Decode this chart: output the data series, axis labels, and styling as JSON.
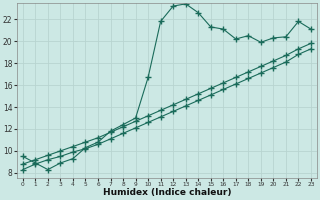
{
  "xlabel": "Humidex (Indice chaleur)",
  "background_color": "#cce8e4",
  "grid_color": "#b8d4d0",
  "line_color": "#1a6b5a",
  "xlim": [
    -0.5,
    23.5
  ],
  "ylim": [
    7.5,
    23.5
  ],
  "yticks": [
    8,
    10,
    12,
    14,
    16,
    18,
    20,
    22
  ],
  "xticks": [
    0,
    1,
    2,
    3,
    4,
    5,
    6,
    7,
    8,
    9,
    10,
    11,
    12,
    13,
    14,
    15,
    16,
    17,
    18,
    19,
    20,
    21,
    22,
    23
  ],
  "xtick_labels": [
    "0",
    "1",
    "2",
    "3",
    "4",
    "5",
    "6",
    "7",
    "8",
    "9",
    "10",
    "11",
    "12",
    "13",
    "14",
    "15",
    "16",
    "17",
    "18",
    "19",
    "20",
    "21",
    "22",
    "23"
  ],
  "line1_x": [
    0,
    1,
    2,
    3,
    4,
    5,
    6,
    7,
    8,
    9,
    10,
    11,
    12,
    13,
    14,
    15,
    16,
    17,
    18,
    19,
    20,
    21,
    22,
    23
  ],
  "line1_y": [
    9.5,
    8.9,
    8.3,
    8.9,
    9.3,
    10.3,
    10.8,
    11.8,
    12.4,
    13.0,
    16.7,
    21.8,
    23.2,
    23.4,
    22.6,
    21.3,
    21.1,
    20.2,
    20.5,
    19.9,
    20.3,
    20.4,
    21.8,
    21.1
  ],
  "line2_x": [
    0,
    1,
    2,
    3,
    4,
    5,
    6,
    7,
    8,
    9,
    10,
    11,
    12,
    13,
    14,
    15,
    16,
    17,
    18,
    19,
    20,
    21,
    22,
    23
  ],
  "line2_y": [
    8.3,
    8.8,
    9.2,
    9.5,
    9.9,
    10.2,
    10.6,
    11.1,
    11.6,
    12.1,
    12.6,
    13.1,
    13.6,
    14.1,
    14.6,
    15.1,
    15.6,
    16.1,
    16.6,
    17.1,
    17.6,
    18.1,
    18.8,
    19.3
  ],
  "line3_x": [
    0,
    1,
    2,
    3,
    4,
    5,
    6,
    7,
    8,
    9,
    10,
    11,
    12,
    13,
    14,
    15,
    16,
    17,
    18,
    19,
    20,
    21,
    22,
    23
  ],
  "line3_y": [
    8.8,
    9.2,
    9.6,
    10.0,
    10.4,
    10.8,
    11.2,
    11.7,
    12.2,
    12.7,
    13.2,
    13.7,
    14.2,
    14.7,
    15.2,
    15.7,
    16.2,
    16.7,
    17.2,
    17.7,
    18.2,
    18.7,
    19.3,
    19.8
  ]
}
